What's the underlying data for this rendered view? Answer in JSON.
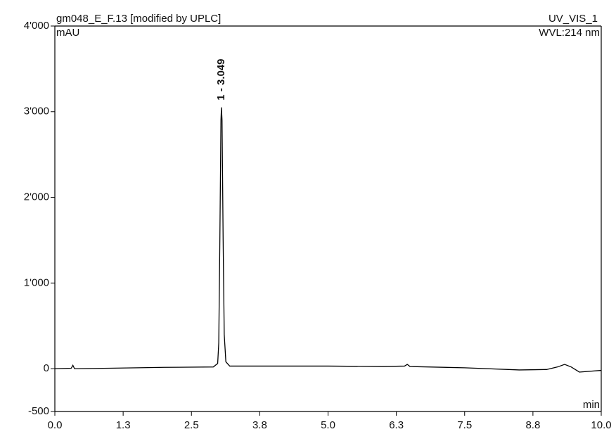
{
  "chart_data": {
    "type": "line",
    "title": "gm048_E_F.13 [modified by UPLC]",
    "channel": "UV_VIS_1",
    "wavelength": "WVL:214 nm",
    "y_unit": "mAU",
    "x_unit": "min",
    "xlim": [
      0,
      10
    ],
    "ylim": [
      -500,
      4000
    ],
    "xticks": [
      {
        "value": 0,
        "label": "0.0"
      },
      {
        "value": 1.25,
        "label": "1.3"
      },
      2.5,
      {
        "value": 3.75,
        "label": "3.8"
      },
      {
        "value": 5,
        "label": "5.0"
      },
      {
        "value": 6.25,
        "label": "6.3"
      },
      7.5,
      {
        "value": 8.75,
        "label": "8.8"
      },
      {
        "value": 10,
        "label": "10.0"
      }
    ],
    "yticks": [
      -500,
      0,
      {
        "value": 1000,
        "label": "1'000"
      },
      {
        "value": 2000,
        "label": "2'000"
      },
      {
        "value": 3000,
        "label": "3'000"
      },
      {
        "value": 4000,
        "label": "4'000"
      }
    ],
    "peaks": [
      {
        "label": "1 - 3.049",
        "x": 3.049
      }
    ],
    "series": [
      {
        "color": "#000000",
        "x": [
          0,
          0.3,
          0.33,
          0.36,
          1.0,
          2.0,
          2.9,
          2.98,
          3.0,
          3.02,
          3.04,
          3.049,
          3.06,
          3.08,
          3.1,
          3.13,
          3.2,
          4.0,
          5.0,
          6.0,
          6.4,
          6.45,
          6.5,
          7.5,
          8.5,
          9.0,
          9.2,
          9.33,
          9.45,
          9.6,
          10.0
        ],
        "values": [
          0,
          5,
          40,
          0,
          5,
          15,
          20,
          60,
          300,
          1500,
          2900,
          3050,
          2900,
          1500,
          400,
          80,
          30,
          30,
          30,
          25,
          30,
          50,
          25,
          10,
          -15,
          -10,
          20,
          50,
          20,
          -40,
          -20
        ]
      }
    ]
  }
}
